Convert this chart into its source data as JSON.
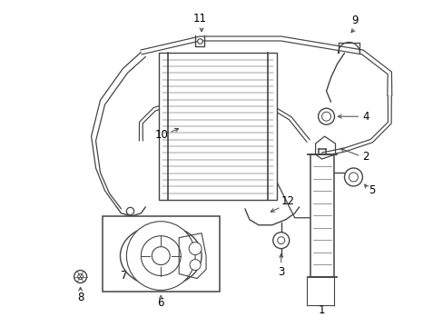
{
  "background_color": "#ffffff",
  "line_color": "#444444",
  "label_color": "#000000",
  "fig_width": 4.89,
  "fig_height": 3.6,
  "dpi": 100,
  "font_size": 8.5
}
